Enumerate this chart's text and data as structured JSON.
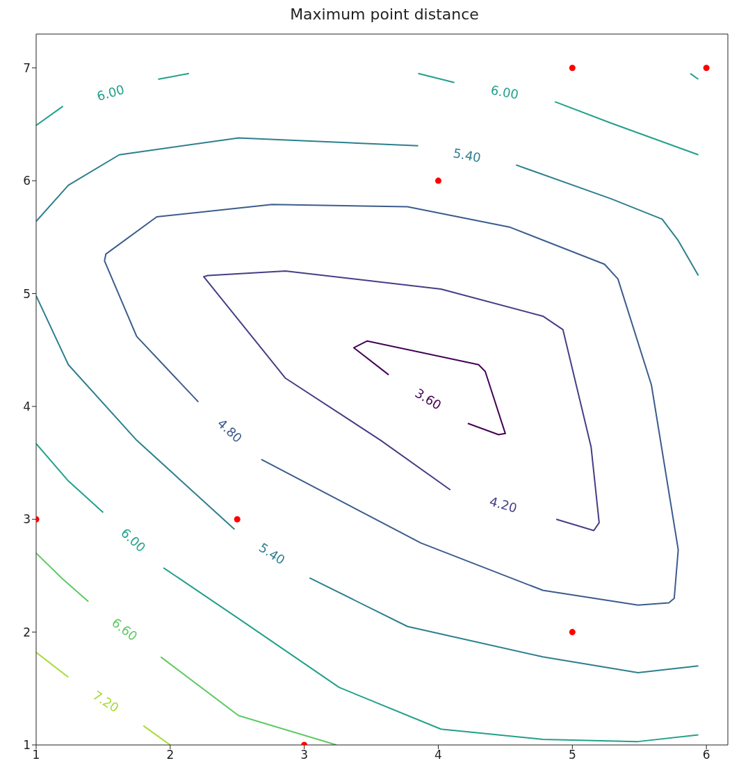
{
  "chart_data": {
    "type": "line",
    "title": "Maximum point distance",
    "xlim": [
      1,
      6.16
    ],
    "ylim": [
      1,
      7.3
    ],
    "xticks": [
      1,
      2,
      3,
      4,
      5,
      6
    ],
    "yticks": [
      1,
      2,
      3,
      4,
      5,
      6,
      7
    ],
    "grid": false,
    "legend": false,
    "marker": "none",
    "line_style": "solid",
    "series": [
      {
        "color": "#440154",
        "x": [
          3.63,
          3.37,
          3.47,
          4.3,
          4.35,
          4.5,
          4.45,
          4.22
        ],
        "values": [
          4.28,
          4.52,
          4.58,
          4.37,
          4.31,
          3.76,
          3.75,
          3.85
        ]
      },
      {
        "color": "#433e85",
        "x": [
          4.09,
          3.57,
          2.86,
          2.25,
          2.28,
          2.86,
          4.02,
          4.78,
          4.93,
          5.14,
          5.2,
          5.16,
          4.88
        ],
        "values": [
          3.26,
          3.7,
          4.25,
          5.15,
          5.16,
          5.2,
          5.04,
          4.8,
          4.68,
          3.64,
          2.97,
          2.9,
          3.0
        ]
      },
      {
        "color": "#3b5c8c",
        "x": [
          2.21,
          1.75,
          1.51,
          1.52,
          1.9,
          2.76,
          3.77,
          4.53,
          5.24,
          5.34,
          5.59,
          5.79,
          5.76,
          5.72,
          5.49,
          4.78,
          3.87,
          2.68
        ],
        "values": [
          4.04,
          4.62,
          5.29,
          5.35,
          5.68,
          5.79,
          5.77,
          5.59,
          5.26,
          5.13,
          4.19,
          2.73,
          2.3,
          2.26,
          2.24,
          2.37,
          2.79,
          3.53
        ]
      },
      {
        "color": "#2c7f8e",
        "x": [
          1.0,
          1.24,
          1.62,
          2.51,
          3.85
        ],
        "values": [
          5.64,
          5.96,
          6.23,
          6.38,
          6.31
        ]
      },
      {
        "color": "#2c7f8e",
        "x": [
          4.58,
          5.29,
          5.67,
          5.79,
          5.94
        ],
        "values": [
          6.14,
          5.84,
          5.66,
          5.47,
          5.16
        ]
      },
      {
        "color": "#2c7f8e",
        "x": [
          1.0,
          1.24,
          1.75,
          2.48
        ],
        "values": [
          4.98,
          4.37,
          3.7,
          2.91
        ]
      },
      {
        "color": "#2c7f8e",
        "x": [
          3.04,
          3.77,
          4.78,
          5.49,
          5.94
        ],
        "values": [
          2.48,
          2.05,
          1.78,
          1.64,
          1.7
        ]
      },
      {
        "color": "#21a08a",
        "x": [
          1.0,
          1.2
        ],
        "values": [
          6.49,
          6.66
        ]
      },
      {
        "color": "#21a08a",
        "x": [
          1.91,
          2.14
        ],
        "values": [
          6.9,
          6.95
        ]
      },
      {
        "color": "#21a08a",
        "x": [
          3.85,
          4.12
        ],
        "values": [
          6.95,
          6.87
        ]
      },
      {
        "color": "#21a08a",
        "x": [
          4.87,
          5.29,
          5.94
        ],
        "values": [
          6.7,
          6.51,
          6.23
        ]
      },
      {
        "color": "#21a08a",
        "x": [
          5.88,
          5.94
        ],
        "values": [
          6.95,
          6.9
        ]
      },
      {
        "color": "#21a08a",
        "x": [
          1.0,
          1.24,
          1.5
        ],
        "values": [
          3.67,
          3.34,
          3.06
        ]
      },
      {
        "color": "#21a08a",
        "x": [
          1.95,
          2.51,
          3.26,
          4.02,
          4.78,
          5.49,
          5.94
        ],
        "values": [
          2.57,
          2.12,
          1.51,
          1.14,
          1.05,
          1.03,
          1.09
        ]
      },
      {
        "color": "#5ec962",
        "x": [
          1.0,
          1.19,
          1.39
        ],
        "values": [
          2.7,
          2.48,
          2.27
        ]
      },
      {
        "color": "#5ec962",
        "x": [
          1.93,
          2.51,
          3.24
        ],
        "values": [
          1.78,
          1.26,
          1.0
        ]
      },
      {
        "color": "#a5db36",
        "x": [
          1.0,
          1.24
        ],
        "values": [
          1.82,
          1.6
        ]
      },
      {
        "color": "#a5db36",
        "x": [
          1.8,
          2.0
        ],
        "values": [
          1.17,
          1.0
        ]
      },
      {
        "type": "scatter",
        "color": "#ff0000",
        "marker": "circle",
        "x": [
          1,
          2.5,
          3,
          4,
          5,
          6,
          5
        ],
        "values": [
          3,
          3,
          1,
          6,
          7,
          7,
          2
        ]
      }
    ],
    "annotations": [
      "3.60",
      "4.20",
      "4.80",
      "5.40",
      "5.40",
      "6.00",
      "6.00",
      "6.00",
      "6.60",
      "7.20"
    ]
  }
}
